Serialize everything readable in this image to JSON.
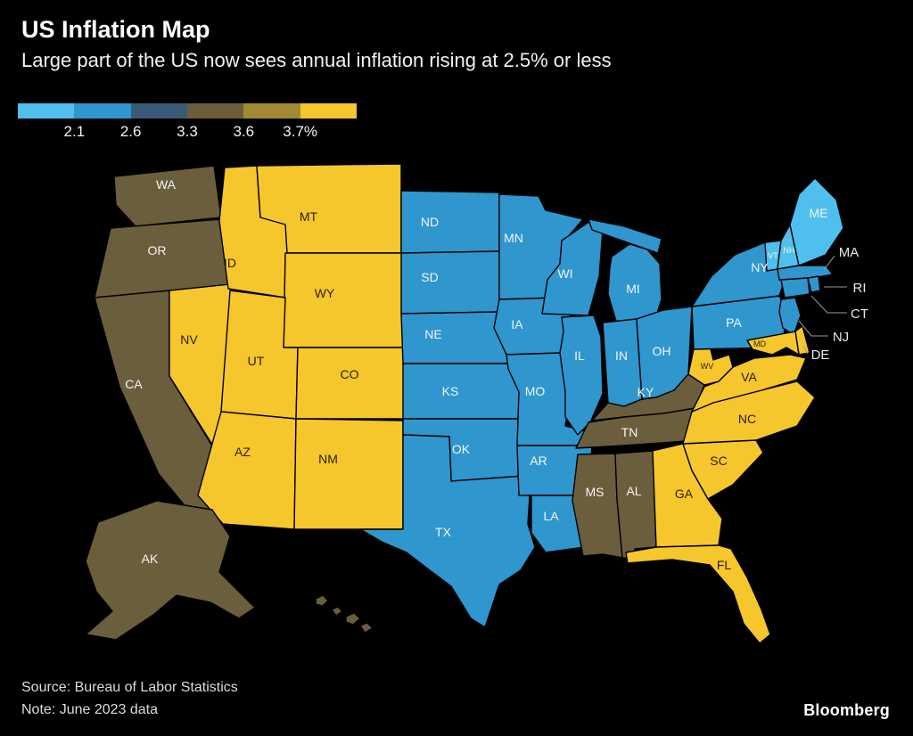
{
  "header": {
    "title": "US Inflation Map",
    "subtitle": "Large part of the US now sees annual inflation rising at 2.5% or less"
  },
  "legend": {
    "labels": [
      "2.1",
      "2.6",
      "3.3",
      "3.6",
      "3.7%"
    ]
  },
  "footer": {
    "source": "Source: Bureau of Labor Statistics",
    "note": "Note: June 2023 data",
    "brand": "Bloomberg"
  },
  "map": {
    "stroke": "#000000",
    "label_on_dark": "#f5f5f5",
    "label_on_light": "#2a2108",
    "offshore_label": "#e8e8e8"
  },
  "chart_data": {
    "type": "choropleth",
    "title": "US Inflation Map",
    "unit": "annual inflation rate %",
    "legend_breaks": [
      "2.1",
      "2.6",
      "3.3",
      "3.6",
      "3.7%"
    ],
    "bins": [
      {
        "name": "light_blue",
        "color": "#4fc0ee"
      },
      {
        "name": "blue",
        "color": "#2f96ce"
      },
      {
        "name": "dark_slate_blue",
        "color": "#3a5a75"
      },
      {
        "name": "olive",
        "color": "#6a5e3c"
      },
      {
        "name": "dark_gold",
        "color": "#a18a33"
      },
      {
        "name": "gold",
        "color": "#f6c62d"
      }
    ],
    "states": [
      {
        "id": "ME",
        "label": "ME",
        "bin": 0
      },
      {
        "id": "NH",
        "label": "NH",
        "bin": 0
      },
      {
        "id": "VT",
        "label": "VT",
        "bin": 0
      },
      {
        "id": "MA",
        "label": "MA",
        "bin": 1
      },
      {
        "id": "RI",
        "label": "RI",
        "bin": 1
      },
      {
        "id": "CT",
        "label": "CT",
        "bin": 1
      },
      {
        "id": "NY",
        "label": "NY",
        "bin": 1
      },
      {
        "id": "NJ",
        "label": "NJ",
        "bin": 1
      },
      {
        "id": "PA",
        "label": "PA",
        "bin": 1
      },
      {
        "id": "OH",
        "label": "OH",
        "bin": 1
      },
      {
        "id": "IN",
        "label": "IN",
        "bin": 1
      },
      {
        "id": "IL",
        "label": "IL",
        "bin": 1
      },
      {
        "id": "MI",
        "label": "MI",
        "bin": 1
      },
      {
        "id": "WI",
        "label": "WI",
        "bin": 1
      },
      {
        "id": "MN",
        "label": "MN",
        "bin": 1
      },
      {
        "id": "IA",
        "label": "IA",
        "bin": 1
      },
      {
        "id": "MO",
        "label": "MO",
        "bin": 1
      },
      {
        "id": "ND",
        "label": "ND",
        "bin": 1
      },
      {
        "id": "SD",
        "label": "SD",
        "bin": 1
      },
      {
        "id": "NE",
        "label": "NE",
        "bin": 1
      },
      {
        "id": "KS",
        "label": "KS",
        "bin": 1
      },
      {
        "id": "OK",
        "label": "OK",
        "bin": 1
      },
      {
        "id": "TX",
        "label": "TX",
        "bin": 1
      },
      {
        "id": "AR",
        "label": "AR",
        "bin": 1
      },
      {
        "id": "LA",
        "label": "LA",
        "bin": 1
      },
      {
        "id": "WA",
        "label": "WA",
        "bin": 3
      },
      {
        "id": "OR",
        "label": "OR",
        "bin": 3
      },
      {
        "id": "CA",
        "label": "CA",
        "bin": 3
      },
      {
        "id": "AK",
        "label": "AK",
        "bin": 3
      },
      {
        "id": "KY",
        "label": "KY",
        "bin": 3
      },
      {
        "id": "TN",
        "label": "TN",
        "bin": 3
      },
      {
        "id": "MS",
        "label": "MS",
        "bin": 3
      },
      {
        "id": "AL",
        "label": "AL",
        "bin": 3
      },
      {
        "id": "HI",
        "label": "",
        "bin": 3
      },
      {
        "id": "MT",
        "label": "MT",
        "bin": 5
      },
      {
        "id": "ID",
        "label": "ID",
        "bin": 5
      },
      {
        "id": "WY",
        "label": "WY",
        "bin": 5
      },
      {
        "id": "NV",
        "label": "NV",
        "bin": 5
      },
      {
        "id": "UT",
        "label": "UT",
        "bin": 5
      },
      {
        "id": "CO",
        "label": "CO",
        "bin": 5
      },
      {
        "id": "AZ",
        "label": "AZ",
        "bin": 5
      },
      {
        "id": "NM",
        "label": "NM",
        "bin": 5
      },
      {
        "id": "FL",
        "label": "FL",
        "bin": 5
      },
      {
        "id": "GA",
        "label": "GA",
        "bin": 5
      },
      {
        "id": "SC",
        "label": "SC",
        "bin": 5
      },
      {
        "id": "NC",
        "label": "NC",
        "bin": 5
      },
      {
        "id": "VA",
        "label": "VA",
        "bin": 5
      },
      {
        "id": "WV",
        "label": "WV",
        "bin": 5
      },
      {
        "id": "DE",
        "label": "DE",
        "bin": 5
      },
      {
        "id": "MD",
        "label": "MD",
        "bin": 5
      }
    ]
  }
}
